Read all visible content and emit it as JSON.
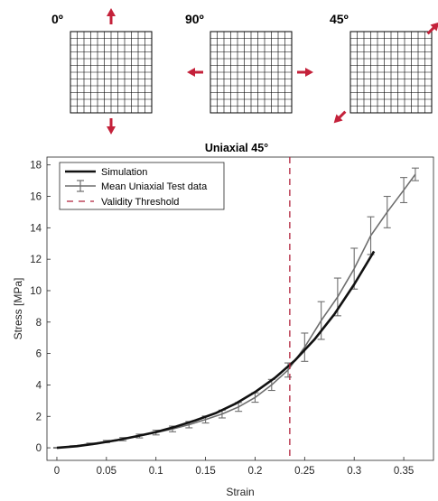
{
  "panels": [
    {
      "label": "0º",
      "arrows": [
        "up",
        "down"
      ]
    },
    {
      "label": "90º",
      "arrows": [
        "left",
        "right"
      ]
    },
    {
      "label": "45º",
      "arrows": [
        "up-right",
        "down-left"
      ]
    }
  ],
  "colors": {
    "arrow": "#c4213a",
    "simulation": "#111111",
    "test": "#6e6e6e",
    "threshold": "#b0203a",
    "grid": "#000000"
  },
  "chart_data": {
    "type": "line",
    "title": "Uniaxial 45°",
    "xlabel": "Strain",
    "ylabel": "Stress [MPa]",
    "xlim": [
      -0.01,
      0.38
    ],
    "ylim": [
      -0.8,
      18.5
    ],
    "xticks": [
      0,
      0.05,
      0.1,
      0.15,
      0.2,
      0.25,
      0.3,
      0.35
    ],
    "xtick_labels": [
      "0",
      "0.05",
      "0.1",
      "0.15",
      "0.2",
      "0.25",
      "0.3",
      "0.35"
    ],
    "yticks": [
      0,
      2,
      4,
      6,
      8,
      10,
      12,
      14,
      16,
      18
    ],
    "ytick_labels": [
      "0",
      "2",
      "4",
      "6",
      "8",
      "10",
      "12",
      "14",
      "16",
      "18"
    ],
    "grid": false,
    "legend_position": "top-left",
    "series": [
      {
        "name": "Simulation",
        "style": "solid-thick",
        "x": [
          0,
          0.02,
          0.04,
          0.06,
          0.08,
          0.1,
          0.12,
          0.14,
          0.16,
          0.18,
          0.2,
          0.22,
          0.24,
          0.26,
          0.28,
          0.3,
          0.32
        ],
        "y": [
          0,
          0.1,
          0.27,
          0.48,
          0.73,
          1.0,
          1.35,
          1.75,
          2.2,
          2.8,
          3.55,
          4.45,
          5.55,
          6.9,
          8.5,
          10.4,
          12.5
        ]
      },
      {
        "name": "Mean Uniaxial Test data",
        "style": "errorbar",
        "x": [
          0,
          0.0167,
          0.0333,
          0.05,
          0.0667,
          0.0833,
          0.1,
          0.1167,
          0.1333,
          0.15,
          0.1667,
          0.1833,
          0.2,
          0.2167,
          0.2333,
          0.25,
          0.2667,
          0.2833,
          0.3,
          0.3167,
          0.3333,
          0.35,
          0.3617
        ],
        "y": [
          0,
          0.1,
          0.25,
          0.4,
          0.55,
          0.75,
          0.97,
          1.2,
          1.47,
          1.8,
          2.15,
          2.6,
          3.2,
          4.0,
          4.95,
          6.4,
          8.1,
          9.6,
          11.4,
          13.5,
          15.0,
          16.4,
          17.4
        ],
        "err": [
          0.02,
          0.03,
          0.05,
          0.07,
          0.1,
          0.12,
          0.15,
          0.18,
          0.2,
          0.22,
          0.25,
          0.28,
          0.3,
          0.35,
          0.45,
          0.9,
          1.2,
          1.2,
          1.3,
          1.2,
          1.0,
          0.8,
          0.4
        ]
      },
      {
        "name": "Validity Threshold",
        "style": "dashed-vertical",
        "x_value": 0.235
      }
    ]
  }
}
